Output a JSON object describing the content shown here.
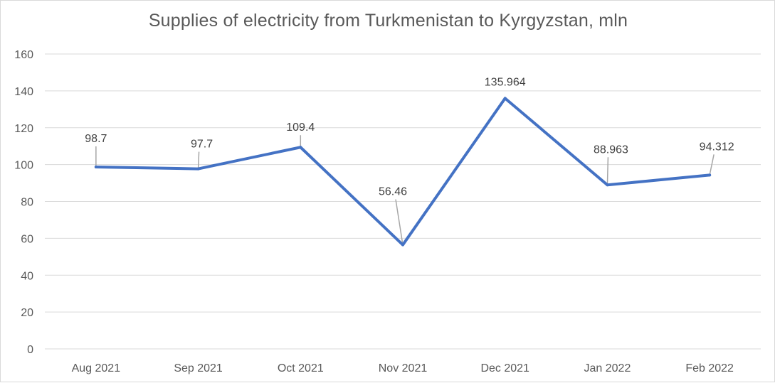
{
  "chart_data": {
    "type": "line",
    "title": "Supplies of electricity from Turkmenistan to Kyrgyzstan, mln",
    "xlabel": "",
    "ylabel": "",
    "categories": [
      "Aug 2021",
      "Sep 2021",
      "Oct 2021",
      "Nov 2021",
      "Dec 2021",
      "Jan 2022",
      "Feb 2022"
    ],
    "series": [
      {
        "values": [
          98.7,
          97.7,
          109.4,
          56.46,
          135.964,
          88.963,
          94.312
        ]
      }
    ],
    "data_labels": [
      "98.7",
      "97.7",
      "109.4",
      "56.46",
      "135.964",
      "88.963",
      "94.312"
    ],
    "y_ticks": [
      "0",
      "20",
      "40",
      "60",
      "80",
      "100",
      "120",
      "140",
      "160"
    ],
    "ylim": [
      0,
      160
    ],
    "grid": true,
    "legend": "none",
    "colors": {
      "line": "#4472c4",
      "grid": "#d9d9d9",
      "leader": "#a6a6a6"
    }
  }
}
